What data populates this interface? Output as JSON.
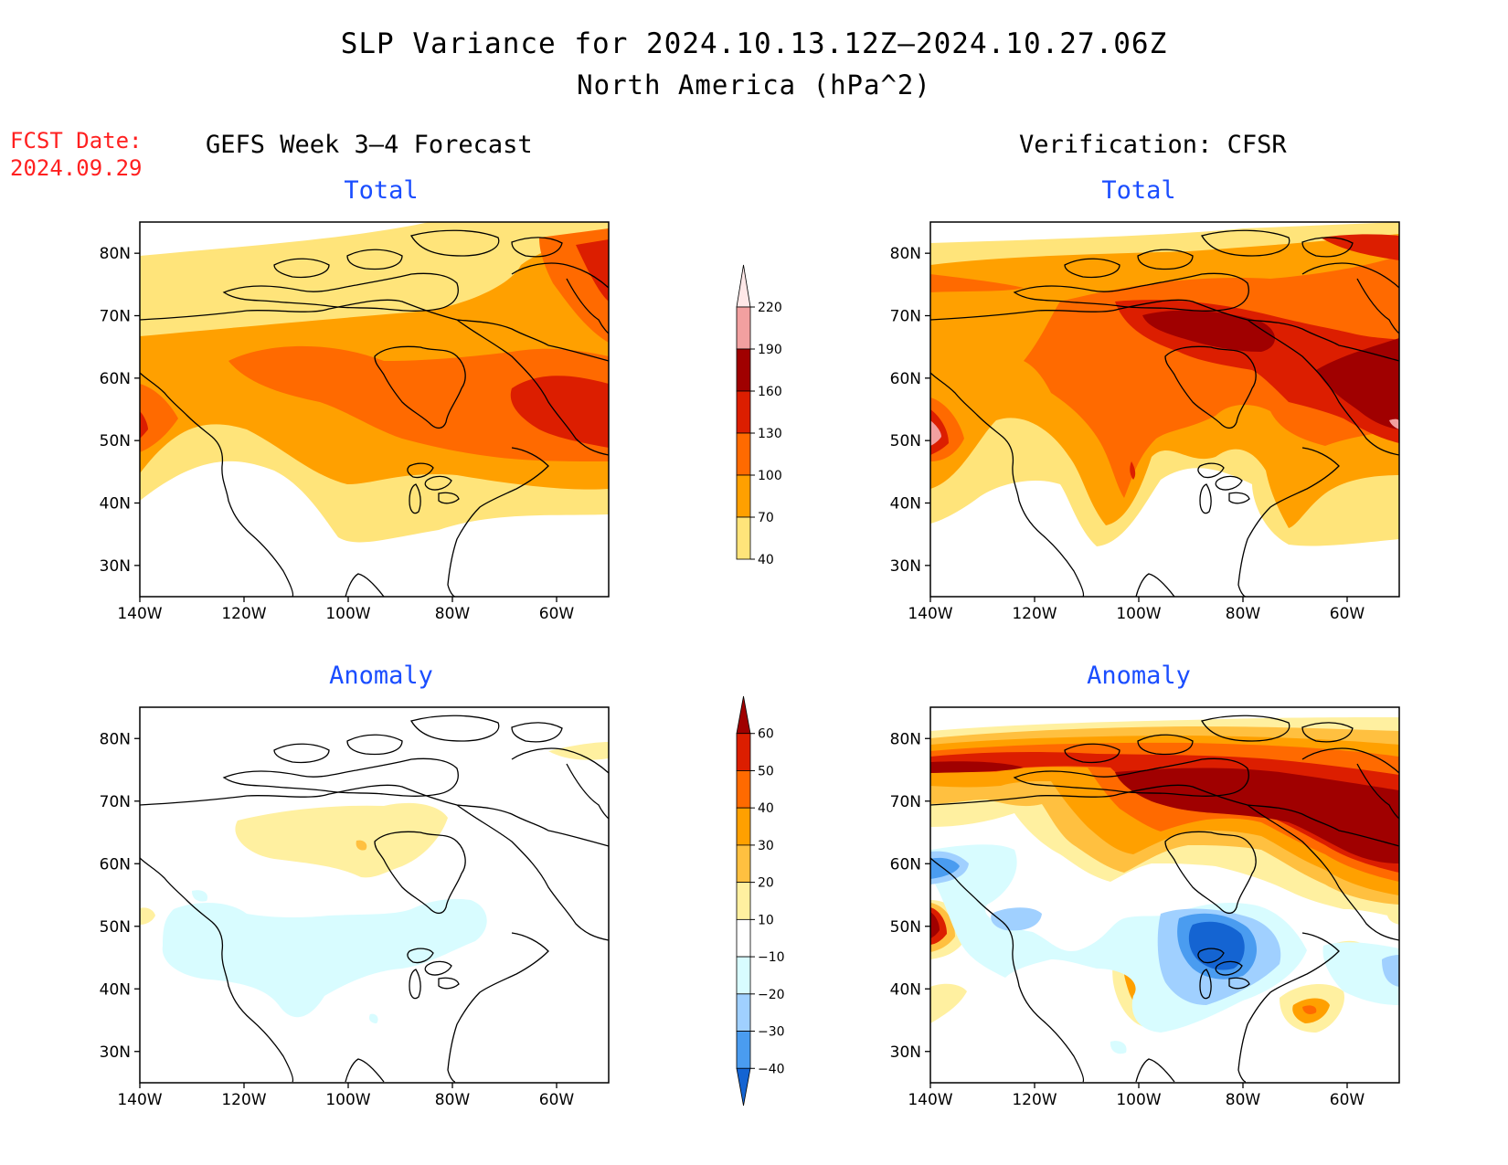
{
  "title": "SLP Variance for 2024.10.13.12Z–2024.10.27.06Z",
  "subtitle": "North America (hPa^2)",
  "fcst_date_label": "FCST Date:",
  "fcst_date": "2024.09.29",
  "left_header": "GEFS Week 3–4 Forecast",
  "right_header": "Verification: CFSR",
  "panels": [
    {
      "title": "Total"
    },
    {
      "title": "Total"
    },
    {
      "title": "Anomaly"
    },
    {
      "title": "Anomaly"
    }
  ],
  "axes": {
    "lat_ticks": [
      "80N",
      "70N",
      "60N",
      "50N",
      "40N",
      "30N"
    ],
    "lon_ticks": [
      "140W",
      "120W",
      "100W",
      "80W",
      "60W"
    ],
    "lat_range": [
      25,
      85
    ],
    "lon_range": [
      -140,
      -50
    ]
  },
  "total_colorbar": {
    "levels": [
      "220",
      "190",
      "160",
      "130",
      "100",
      "70",
      "40"
    ],
    "colors": [
      "#ffe8e8",
      "#f2a0a0",
      "#a00000",
      "#dc1e00",
      "#ff6a00",
      "#ffa000",
      "#ffe47a"
    ]
  },
  "anomaly_colorbar": {
    "levels": [
      "60",
      "50",
      "40",
      "30",
      "20",
      "10",
      "−10",
      "−20",
      "−30",
      "−40"
    ],
    "colors": [
      "#a00000",
      "#dc1e00",
      "#ff6a00",
      "#ffa000",
      "#ffc040",
      "#fff0a0",
      "#ffffff",
      "#d8fcff",
      "#a0d0ff",
      "#4a9cf0",
      "#1464d2"
    ]
  }
}
